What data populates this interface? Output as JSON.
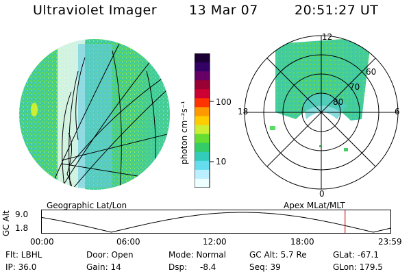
{
  "header": {
    "instrument": "Ultraviolet Imager",
    "date": "13 Mar 07",
    "time": "20:51:27 UT"
  },
  "colors": {
    "background": "#ffffff",
    "aurora_low": "#33ccbb",
    "aurora_mid": "#55dd66",
    "aurora_high": "#ccee33",
    "grid": "#000000",
    "time_marker": "#cc0000"
  },
  "colorbar": {
    "unit_label": "photon cm⁻²s⁻¹",
    "ticks": [
      {
        "label": "100",
        "value": 100
      },
      {
        "label": "10",
        "value": 10
      }
    ],
    "colors": [
      "#1a0033",
      "#330066",
      "#660066",
      "#990033",
      "#cc0033",
      "#ff3300",
      "#ff9900",
      "#ffcc00",
      "#ccee33",
      "#66dd33",
      "#33cc66",
      "#33ccbb",
      "#66ddee",
      "#bbeeff",
      "#eeffff"
    ]
  },
  "left_map": {
    "label": "Geographic Lat/Lon"
  },
  "polar_map": {
    "label": "Apex MLat/MLT",
    "mlt_labels": {
      "top": "12",
      "left": "18",
      "right": "6",
      "bottom": "0"
    },
    "lat_labels": [
      "60",
      "70",
      "80"
    ]
  },
  "altitude_plot": {
    "ylabel": "GC Alt",
    "yticks": [
      "9.0",
      "1.8"
    ],
    "xticks": [
      "00:00",
      "06:00",
      "12:00",
      "18:00",
      "23:59"
    ],
    "current_time_hours": 20.86,
    "ylim": [
      1.8,
      9.0
    ]
  },
  "info": {
    "row1": {
      "flt": "Flt: LBHL",
      "door": "Door: Open",
      "mode": "Mode: Normal",
      "gc_alt": "GC Alt: 5.7 Re",
      "glat": "GLat: -67.1"
    },
    "row2": {
      "ip": "IP: 36.0",
      "gain": "Gain: 14",
      "dsp_label": "Dsp:",
      "dsp_value": "-8.4",
      "seq": "Seq: 39",
      "glon": "GLon: 179.5"
    }
  }
}
